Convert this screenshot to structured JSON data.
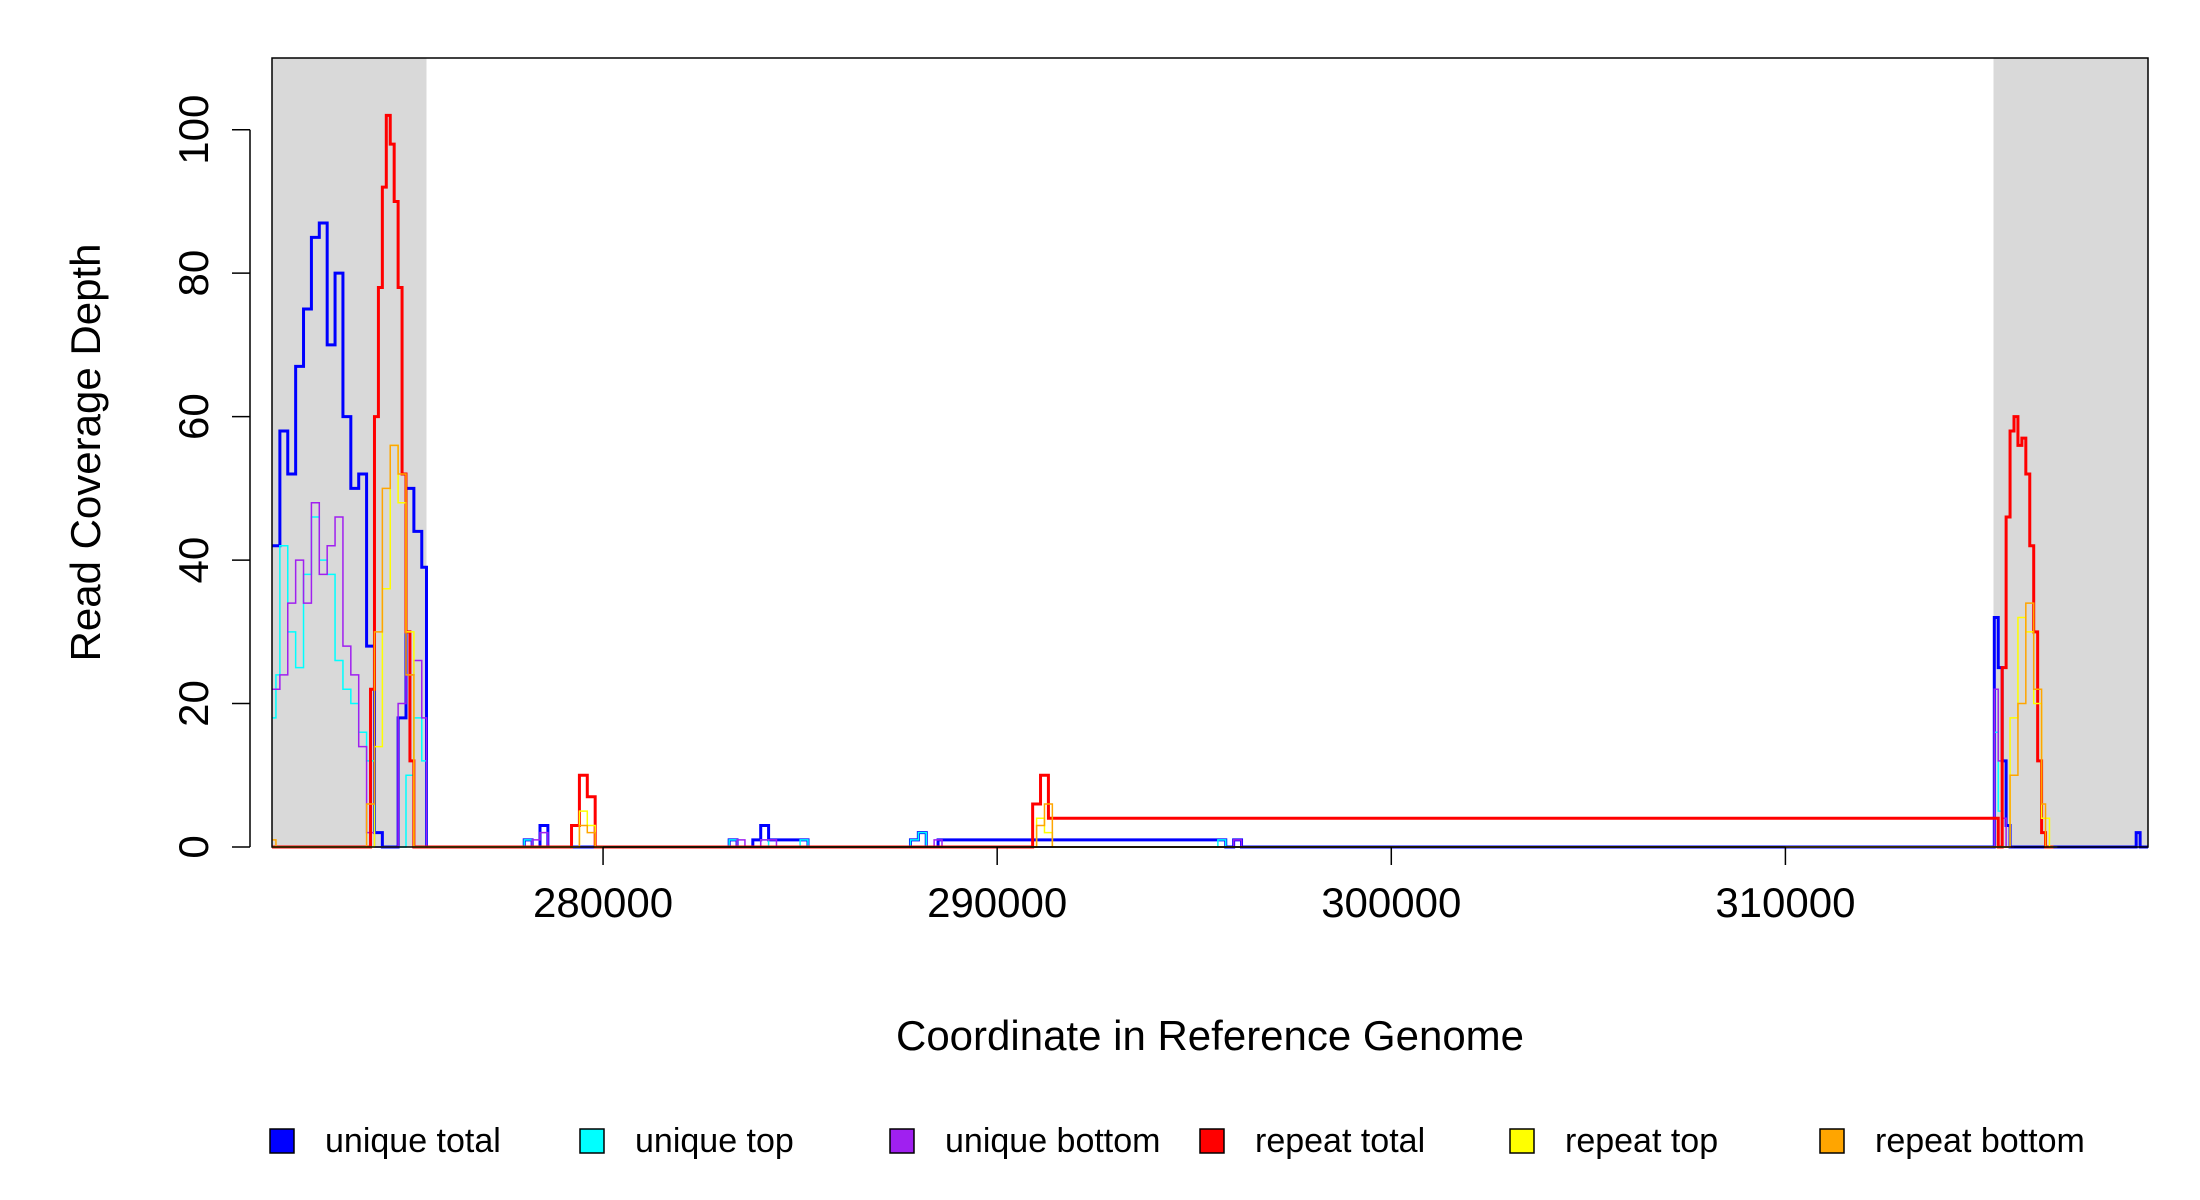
{
  "chart_data": {
    "type": "line",
    "style": "step",
    "xlabel": "Coordinate in Reference Genome",
    "ylabel": "Read Coverage Depth",
    "xlim": [
      271600,
      319200
    ],
    "ylim": [
      0,
      110
    ],
    "x_ticks": [
      {
        "value": 280000,
        "label": "280000"
      },
      {
        "value": 290000,
        "label": "290000"
      },
      {
        "value": 300000,
        "label": "300000"
      },
      {
        "value": 310000,
        "label": "310000"
      }
    ],
    "y_ticks": [
      {
        "value": 0,
        "label": "0"
      },
      {
        "value": 20,
        "label": "20"
      },
      {
        "value": 40,
        "label": "40"
      },
      {
        "value": 60,
        "label": "60"
      },
      {
        "value": 80,
        "label": "80"
      },
      {
        "value": 100,
        "label": "100"
      }
    ],
    "shaded_regions": [
      {
        "x0": 271600,
        "x1": 275520,
        "color": "#d9d9d9"
      },
      {
        "x0": 315280,
        "x1": 319200,
        "color": "#d9d9d9"
      }
    ],
    "grid": false,
    "legend_position": "bottom",
    "series": [
      {
        "name": "unique total",
        "color": "#0000ff",
        "width": 3,
        "x": [
          271600,
          271800,
          272000,
          272200,
          272400,
          272600,
          272800,
          273000,
          273200,
          273400,
          273600,
          273800,
          274000,
          274200,
          274400,
          274600,
          274800,
          275000,
          275200,
          275400,
          275520,
          278000,
          278200,
          278400,
          278600,
          283200,
          283400,
          283800,
          284000,
          284200,
          285000,
          285200,
          287800,
          288000,
          288200,
          288500,
          295600,
          295800,
          296000,
          296200,
          315200,
          315300,
          315400,
          315500,
          315600,
          315700,
          318800,
          318900,
          319000
        ],
        "y": [
          42,
          58,
          52,
          67,
          75,
          85,
          87,
          70,
          80,
          60,
          50,
          52,
          28,
          2,
          0,
          0,
          18,
          50,
          44,
          39,
          0,
          1,
          0,
          3,
          0,
          1,
          0,
          1,
          3,
          1,
          1,
          0,
          1,
          2,
          0,
          1,
          1,
          0,
          1,
          0,
          0,
          32,
          25,
          12,
          3,
          0,
          0,
          2,
          0
        ]
      },
      {
        "name": "unique top",
        "color": "#00ffff",
        "width": 1.5,
        "x": [
          271600,
          271700,
          271800,
          272000,
          272200,
          272400,
          272600,
          272800,
          273000,
          273200,
          273400,
          273600,
          273800,
          274000,
          274200,
          275000,
          275200,
          275400,
          275520,
          278000,
          278200,
          283200,
          283400,
          284000,
          284200,
          284800,
          285000,
          285200,
          287800,
          288000,
          288200,
          295600,
          295800,
          315300,
          315400,
          315500
        ],
        "y": [
          18,
          24,
          42,
          30,
          25,
          38,
          46,
          40,
          38,
          26,
          22,
          20,
          16,
          12,
          0,
          10,
          18,
          12,
          0,
          1,
          0,
          1,
          0,
          1,
          0,
          0,
          1,
          0,
          1,
          2,
          0,
          1,
          0,
          16,
          5,
          0
        ]
      },
      {
        "name": "unique bottom",
        "color": "#a020f0",
        "width": 1.5,
        "x": [
          271600,
          271800,
          272000,
          272200,
          272400,
          272600,
          272800,
          273000,
          273200,
          273400,
          273600,
          273800,
          274000,
          274200,
          274800,
          275000,
          275200,
          275400,
          275520,
          278200,
          278400,
          278600,
          283400,
          283600,
          284000,
          284200,
          284400,
          288400,
          288600,
          296000,
          296200,
          315300,
          315400,
          315500,
          315600
        ],
        "y": [
          22,
          24,
          34,
          40,
          34,
          48,
          38,
          42,
          46,
          28,
          24,
          14,
          2,
          0,
          20,
          24,
          26,
          18,
          0,
          1,
          2,
          0,
          1,
          0,
          1,
          1,
          0,
          1,
          0,
          1,
          0,
          22,
          12,
          4,
          0
        ]
      },
      {
        "name": "repeat total",
        "color": "#ff0000",
        "width": 3,
        "x": [
          271600,
          273900,
          274100,
          274200,
          274300,
          274400,
          274500,
          274600,
          274700,
          274800,
          274900,
          275000,
          275100,
          275200,
          279000,
          279200,
          279400,
          279600,
          279800,
          290700,
          290900,
          291100,
          291300,
          315400,
          315500,
          315600,
          315700,
          315800,
          315900,
          316000,
          316100,
          316200,
          316300,
          316400,
          316500,
          316600
        ],
        "y": [
          0,
          0,
          22,
          60,
          78,
          92,
          102,
          98,
          90,
          78,
          52,
          30,
          12,
          0,
          0,
          3,
          10,
          7,
          0,
          0,
          6,
          10,
          4,
          0,
          25,
          46,
          58,
          60,
          56,
          57,
          52,
          42,
          30,
          12,
          2,
          0
        ],
        "marks": "segments"
      },
      {
        "name": "repeat top",
        "color": "#ffff00",
        "width": 1.5,
        "x": [
          271600,
          274000,
          274200,
          274400,
          274600,
          274800,
          275000,
          275200,
          279200,
          279400,
          279600,
          279800,
          290800,
          291000,
          291200,
          291400,
          315500,
          315700,
          315900,
          316100,
          316300,
          316500,
          316700
        ],
        "y": [
          0,
          0,
          14,
          36,
          56,
          48,
          30,
          0,
          0,
          5,
          3,
          0,
          0,
          4,
          2,
          0,
          0,
          18,
          32,
          30,
          20,
          4,
          0
        ],
        "marks": "segments"
      },
      {
        "name": "repeat bottom",
        "color": "#ffa500",
        "width": 1.5,
        "x": [
          271600,
          271700,
          273900,
          274000,
          274200,
          274400,
          274600,
          274800,
          275000,
          275200,
          279200,
          279400,
          279600,
          279800,
          290800,
          291000,
          291200,
          291400,
          315500,
          315700,
          315900,
          316100,
          316300,
          316500,
          316600
        ],
        "y": [
          1,
          0,
          0,
          6,
          30,
          50,
          56,
          52,
          24,
          0,
          0,
          3,
          2,
          0,
          0,
          3,
          6,
          0,
          0,
          10,
          20,
          34,
          22,
          6,
          0
        ],
        "marks": "segments"
      }
    ]
  }
}
